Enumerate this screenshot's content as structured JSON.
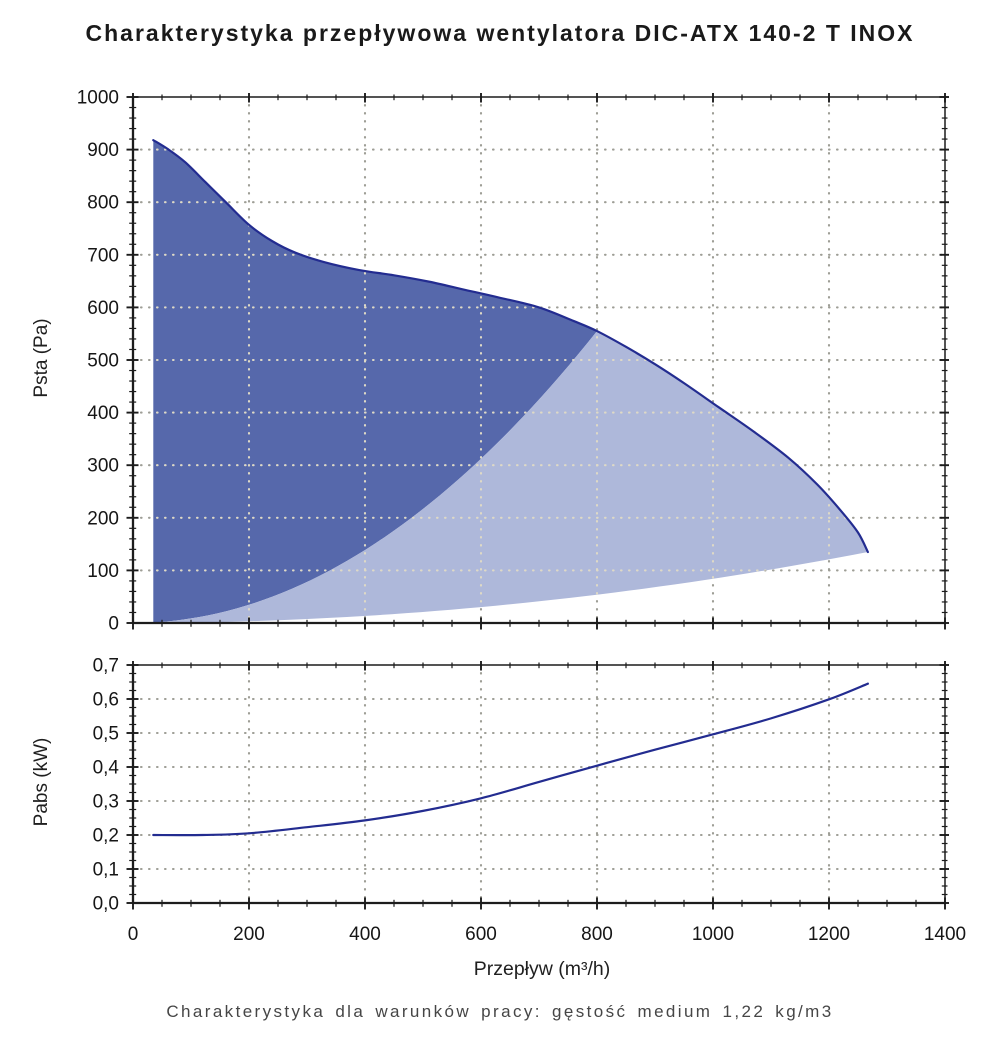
{
  "page": {
    "title": "Charakterystyka przepływowa wentylatora DIC-ATX 140-2 T INOX",
    "caption": "Charakterystyka dla warunków pracy: gęstość medium 1,22 kg/m3"
  },
  "style": {
    "curve_color": "#232c90",
    "region_dark_color": "#5668ab",
    "region_light_color": "#aeb8da",
    "grid_color_on_white": "#9e9e96",
    "grid_color_on_fill": "#ded9c6",
    "axis_color": "#1c1c1c",
    "tick_text_color": "#161616"
  },
  "chart_data": [
    {
      "type": "area",
      "name": "fan-pressure-chart",
      "ylabel": "Psta (Pa)",
      "xlabel": "",
      "x": {
        "min": 0,
        "max": 1400,
        "major_step": 200,
        "minor_step": 50,
        "grid": true,
        "tick_labels": []
      },
      "y": {
        "min": 0,
        "max": 1000,
        "major_step": 100,
        "minor_step": 20,
        "grid": true,
        "tick_labels": [
          "0",
          "100",
          "200",
          "300",
          "400",
          "500",
          "600",
          "700",
          "800",
          "900",
          "1000"
        ]
      },
      "series": [
        {
          "name": "fan-curve-psta",
          "points": [
            [
              35,
              918
            ],
            [
              60,
              901
            ],
            [
              90,
              876
            ],
            [
              125,
              838
            ],
            [
              160,
              800
            ],
            [
              200,
              757
            ],
            [
              240,
              726
            ],
            [
              280,
              704
            ],
            [
              330,
              686
            ],
            [
              390,
              671
            ],
            [
              450,
              661
            ],
            [
              510,
              649
            ],
            [
              570,
              634
            ],
            [
              630,
              619
            ],
            [
              700,
              600
            ],
            [
              760,
              574
            ],
            [
              800,
              555
            ],
            [
              850,
              525
            ],
            [
              900,
              492
            ],
            [
              950,
              456
            ],
            [
              1010,
              410
            ],
            [
              1070,
              364
            ],
            [
              1130,
              314
            ],
            [
              1180,
              263
            ],
            [
              1220,
              214
            ],
            [
              1250,
              172
            ],
            [
              1267,
              135
            ]
          ]
        }
      ],
      "regions": [
        {
          "name": "recommended-operating-area",
          "color": "#5668ab",
          "x_start": 35,
          "x_end": 800,
          "upper": "fan-curve",
          "lower_parabola_k": 0.000867
        },
        {
          "name": "extended-operating-area",
          "color": "#aeb8da",
          "x_start": 35,
          "x_end": 1267,
          "upper_parabola_k": 0.000867,
          "fan_segment": [
            800,
            1267
          ],
          "lower_parabola_k": 8.41e-05
        }
      ],
      "annotations": {
        "curve_start": [
          35,
          918
        ],
        "curve_end": [
          1267,
          135
        ],
        "parabolas_intersect_curve_at": [
          800,
          555
        ]
      }
    },
    {
      "type": "line",
      "name": "power-curve-chart",
      "ylabel": "Pabs (kW)",
      "xlabel": "Przepływ (m³/h)",
      "x": {
        "min": 0,
        "max": 1400,
        "major_step": 200,
        "minor_step": 50,
        "grid": true,
        "tick_labels": [
          "0",
          "200",
          "400",
          "600",
          "800",
          "1000",
          "1200",
          "1400"
        ]
      },
      "y": {
        "min": 0,
        "max": 0.7,
        "major_step": 0.1,
        "minor_step": 0.025,
        "grid": true,
        "tick_labels": [
          "0,0",
          "0,1",
          "0,2",
          "0,3",
          "0,4",
          "0,5",
          "0,6",
          "0,7"
        ]
      },
      "series": [
        {
          "name": "power-curve-pabs",
          "points": [
            [
              35,
              0.2
            ],
            [
              120,
              0.2
            ],
            [
              200,
              0.205
            ],
            [
              300,
              0.223
            ],
            [
              400,
              0.243
            ],
            [
              500,
              0.271
            ],
            [
              600,
              0.308
            ],
            [
              700,
              0.356
            ],
            [
              800,
              0.404
            ],
            [
              900,
              0.451
            ],
            [
              1000,
              0.496
            ],
            [
              1100,
              0.543
            ],
            [
              1200,
              0.599
            ],
            [
              1267,
              0.645
            ]
          ]
        }
      ],
      "regions": []
    }
  ]
}
